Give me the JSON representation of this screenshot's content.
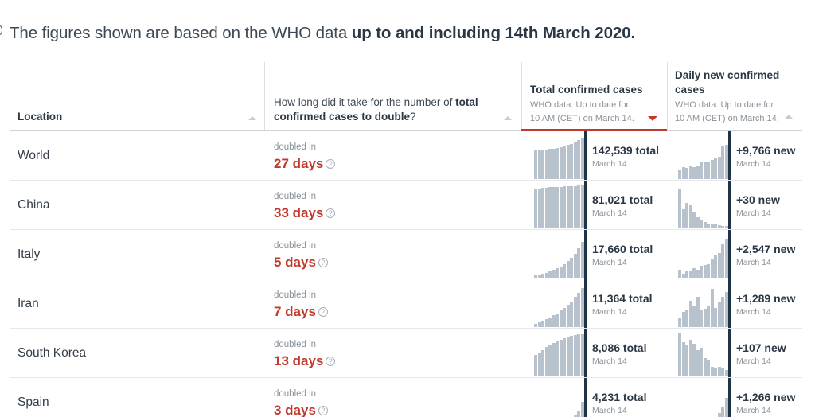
{
  "headline": {
    "prefix": "The figures shown are based on the WHO data ",
    "emphasis": "up to and including 14th March 2020."
  },
  "columns": {
    "location": {
      "label": "Location"
    },
    "doubling": {
      "prefix": "How long did it take for the number of ",
      "emphasis": "total confirmed cases to double",
      "suffix": "?"
    },
    "total": {
      "title": "Total confirmed cases",
      "sub1": "WHO data. Up to date for",
      "sub2": "10 AM (CET) on March 14."
    },
    "daily": {
      "title1": "Daily new confirmed",
      "title2": "cases",
      "sub1": "WHO data. Up to date for",
      "sub2": "10 AM (CET) on March 14."
    }
  },
  "doubled_label": "doubled in",
  "help_glyph": "?",
  "sort_icons": {
    "location": "sort-arrow-up",
    "doubling": "sort-arrow-up",
    "total": "sort-arrow-down-active",
    "daily": "sort-arrow-up"
  },
  "colors": {
    "accent_red": "#c0392b",
    "bar": "#b8c2cc",
    "bar_latest": "#1f3347"
  },
  "rows": [
    {
      "location": "World",
      "doubled": "27 days",
      "total": "142,539 total",
      "total_date": "March 14",
      "new": "+9,766 new",
      "new_date": "March 14",
      "total_series": [
        0.66,
        0.67,
        0.68,
        0.69,
        0.7,
        0.71,
        0.72,
        0.74,
        0.76,
        0.79,
        0.82,
        0.86,
        0.9,
        0.95,
        1.0
      ],
      "new_series": [
        0.22,
        0.28,
        0.25,
        0.3,
        0.28,
        0.32,
        0.38,
        0.4,
        0.4,
        0.45,
        0.5,
        0.52,
        0.75,
        0.8,
        1.0
      ]
    },
    {
      "location": "China",
      "doubled": "33 days",
      "total": "81,021 total",
      "total_date": "March 14",
      "new": "+30 new",
      "new_date": "March 14",
      "total_series": [
        0.92,
        0.93,
        0.94,
        0.95,
        0.96,
        0.96,
        0.97,
        0.97,
        0.98,
        0.98,
        0.99,
        0.99,
        1.0,
        1.0,
        1.0
      ],
      "new_series": [
        0.9,
        0.45,
        0.6,
        0.55,
        0.38,
        0.25,
        0.18,
        0.15,
        0.12,
        0.12,
        0.1,
        0.08,
        0.06,
        0.05,
        0.04
      ]
    },
    {
      "location": "Italy",
      "doubled": "5 days",
      "total": "17,660 total",
      "total_date": "March 14",
      "new": "+2,547 new",
      "new_date": "March 14",
      "total_series": [
        0.05,
        0.07,
        0.09,
        0.12,
        0.15,
        0.18,
        0.22,
        0.26,
        0.32,
        0.38,
        0.46,
        0.56,
        0.68,
        0.84,
        1.0
      ],
      "new_series": [
        0.18,
        0.1,
        0.14,
        0.16,
        0.22,
        0.18,
        0.28,
        0.3,
        0.32,
        0.42,
        0.52,
        0.58,
        0.8,
        0.9,
        1.0
      ]
    },
    {
      "location": "Iran",
      "doubled": "7 days",
      "total": "11,364 total",
      "total_date": "March 14",
      "new": "+1,289 new",
      "new_date": "March 14",
      "total_series": [
        0.08,
        0.11,
        0.14,
        0.18,
        0.22,
        0.27,
        0.32,
        0.38,
        0.45,
        0.52,
        0.6,
        0.7,
        0.8,
        0.9,
        1.0
      ],
      "new_series": [
        0.22,
        0.35,
        0.4,
        0.62,
        0.5,
        0.7,
        0.4,
        0.42,
        0.48,
        0.88,
        0.45,
        0.58,
        0.7,
        0.82,
        1.0
      ]
    },
    {
      "location": "South Korea",
      "doubled": "13 days",
      "total": "8,086 total",
      "total_date": "March 14",
      "new": "+107 new",
      "new_date": "March 14",
      "total_series": [
        0.5,
        0.56,
        0.62,
        0.68,
        0.73,
        0.78,
        0.82,
        0.86,
        0.89,
        0.92,
        0.94,
        0.96,
        0.98,
        0.99,
        1.0
      ],
      "new_series": [
        1.0,
        0.8,
        0.72,
        0.85,
        0.75,
        0.62,
        0.66,
        0.42,
        0.38,
        0.22,
        0.2,
        0.22,
        0.18,
        0.15,
        0.18
      ]
    },
    {
      "location": "Spain",
      "doubled": "3 days",
      "total": "4,231 total",
      "total_date": "March 14",
      "new": "+1,266 new",
      "new_date": "March 14",
      "total_series": [
        0.02,
        0.02,
        0.03,
        0.03,
        0.04,
        0.05,
        0.06,
        0.08,
        0.1,
        0.14,
        0.19,
        0.26,
        0.36,
        0.55,
        1.0
      ],
      "new_series": [
        0.02,
        0.02,
        0.03,
        0.03,
        0.04,
        0.05,
        0.06,
        0.08,
        0.1,
        0.14,
        0.2,
        0.3,
        0.45,
        0.65,
        1.0
      ]
    }
  ]
}
